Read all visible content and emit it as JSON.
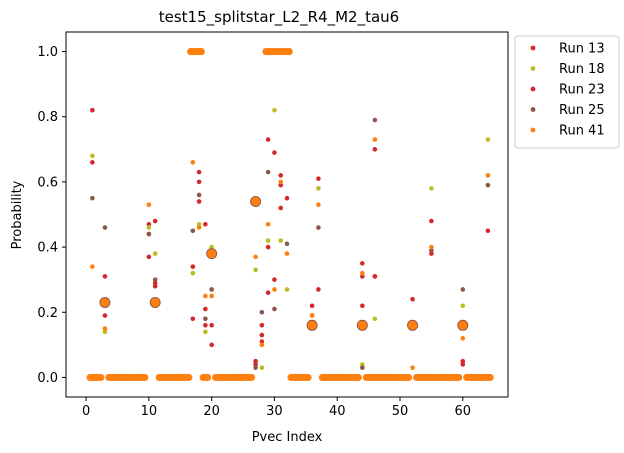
{
  "chart_data": {
    "type": "scatter",
    "title": "test15_splitstar_L2_R4_M2_tau6",
    "xlabel": "Pvec Index",
    "ylabel": "Probability",
    "xlim": [
      -3.2,
      67.2
    ],
    "ylim": [
      -0.06,
      1.06
    ],
    "x_ticks": [
      0,
      10,
      20,
      30,
      40,
      50,
      60
    ],
    "y_ticks": [
      0.0,
      0.2,
      0.4,
      0.6,
      0.8,
      1.0
    ],
    "x_tick_labels": [
      "0",
      "10",
      "20",
      "30",
      "40",
      "50",
      "60"
    ],
    "y_tick_labels": [
      "0.0",
      "0.2",
      "0.4",
      "0.6",
      "0.8",
      "1.0"
    ],
    "legend_position": "outside-top-right",
    "grid": false,
    "series": [
      {
        "name": "Run 13",
        "color": "#d62728",
        "points": [
          [
            1,
            0.82
          ],
          [
            1,
            0.66
          ],
          [
            3,
            0.31
          ],
          [
            3,
            0.19
          ],
          [
            10,
            0.37
          ],
          [
            10,
            0.47
          ],
          [
            11,
            0.48
          ],
          [
            11,
            0.29
          ],
          [
            17,
            0.18
          ],
          [
            17,
            0.34
          ],
          [
            18,
            0.63
          ],
          [
            18,
            0.54
          ],
          [
            19,
            0.47
          ],
          [
            19,
            0.16
          ],
          [
            20,
            0.1
          ],
          [
            20,
            0.16
          ],
          [
            27,
            0.05
          ],
          [
            28,
            0.16
          ],
          [
            28,
            0.13
          ],
          [
            29,
            0.73
          ],
          [
            29,
            0.4
          ],
          [
            30,
            0.69
          ],
          [
            30,
            0.3
          ],
          [
            31,
            0.62
          ],
          [
            31,
            0.52
          ],
          [
            32,
            0.55
          ],
          [
            36,
            0.22
          ],
          [
            36,
            0.19
          ],
          [
            37,
            0.61
          ],
          [
            37,
            0.27
          ],
          [
            44,
            0.35
          ],
          [
            44,
            0.22
          ],
          [
            46,
            0.7
          ],
          [
            46,
            0.31
          ],
          [
            52,
            0.24
          ],
          [
            55,
            0.48
          ],
          [
            55,
            0.38
          ],
          [
            60,
            0.05
          ],
          [
            64,
            0.45
          ]
        ]
      },
      {
        "name": "Run 18",
        "color": "#bcbd22",
        "points": [
          [
            1,
            0.68
          ],
          [
            3,
            0.14
          ],
          [
            10,
            0.46
          ],
          [
            11,
            0.38
          ],
          [
            17,
            0.32
          ],
          [
            18,
            0.47
          ],
          [
            19,
            0.14
          ],
          [
            20,
            0.4
          ],
          [
            27,
            0.33
          ],
          [
            28,
            0.03
          ],
          [
            29,
            0.42
          ],
          [
            30,
            0.82
          ],
          [
            31,
            0.42
          ],
          [
            32,
            0.27
          ],
          [
            37,
            0.58
          ],
          [
            44,
            0.04
          ],
          [
            46,
            0.18
          ],
          [
            55,
            0.58
          ],
          [
            60,
            0.22
          ],
          [
            64,
            0.73
          ]
        ]
      },
      {
        "name": "Run 23",
        "color": "#d62728",
        "points": [
          [
            10,
            0.44
          ],
          [
            11,
            0.28
          ],
          [
            18,
            0.6
          ],
          [
            19,
            0.21
          ],
          [
            27,
            0.04
          ],
          [
            28,
            0.11
          ],
          [
            29,
            0.26
          ],
          [
            31,
            0.59
          ],
          [
            36,
            0.16
          ],
          [
            44,
            0.31
          ],
          [
            46,
            0.31
          ],
          [
            60,
            0.04
          ]
        ]
      },
      {
        "name": "Run 25",
        "color": "#8c564b",
        "points": [
          [
            1,
            0.55
          ],
          [
            3,
            0.46
          ],
          [
            10,
            0.44
          ],
          [
            11,
            0.3
          ],
          [
            17,
            0.45
          ],
          [
            18,
            0.56
          ],
          [
            19,
            0.18
          ],
          [
            20,
            0.27
          ],
          [
            27,
            0.03
          ],
          [
            28,
            0.2
          ],
          [
            29,
            0.63
          ],
          [
            30,
            0.21
          ],
          [
            32,
            0.41
          ],
          [
            37,
            0.46
          ],
          [
            44,
            0.03
          ],
          [
            46,
            0.79
          ],
          [
            55,
            0.39
          ],
          [
            60,
            0.27
          ],
          [
            64,
            0.59
          ]
        ]
      },
      {
        "name": "Run 41",
        "color": "#ff7f0e",
        "points": [
          [
            1,
            0.34
          ],
          [
            3,
            0.15
          ],
          [
            10,
            0.53
          ],
          [
            11,
            0.22
          ],
          [
            17,
            0.66
          ],
          [
            18,
            0.46
          ],
          [
            19,
            0.25
          ],
          [
            20,
            0.25
          ],
          [
            27,
            0.37
          ],
          [
            28,
            0.1
          ],
          [
            29,
            0.47
          ],
          [
            30,
            0.27
          ],
          [
            31,
            0.6
          ],
          [
            32,
            0.38
          ],
          [
            36,
            0.19
          ],
          [
            37,
            0.53
          ],
          [
            44,
            0.32
          ],
          [
            46,
            0.73
          ],
          [
            52,
            0.03
          ],
          [
            55,
            0.4
          ],
          [
            60,
            0.12
          ],
          [
            64,
            0.62
          ]
        ]
      }
    ],
    "clusters": [
      {
        "color": "#ff7f0e",
        "y": 0.0,
        "x_ranges": [
          [
            1,
            2
          ],
          [
            4,
            9
          ],
          [
            12,
            16
          ],
          [
            19,
            19
          ],
          [
            21,
            26
          ],
          [
            33,
            35
          ],
          [
            38,
            43
          ],
          [
            45,
            51
          ],
          [
            53,
            59
          ],
          [
            61,
            64
          ]
        ]
      },
      {
        "color": "#ff7f0e",
        "y": 1.0,
        "x_ranges": [
          [
            17,
            18
          ],
          [
            29,
            32
          ]
        ]
      },
      {
        "color": "#ff7f0e",
        "y": 0.23,
        "x_ranges": [
          [
            3,
            3
          ],
          [
            11,
            11
          ]
        ]
      },
      {
        "color": "#ff7f0e",
        "y": 0.38,
        "x_ranges": [
          [
            20,
            20
          ]
        ]
      },
      {
        "color": "#ff7f0e",
        "y": 0.54,
        "x_ranges": [
          [
            27,
            27
          ]
        ]
      },
      {
        "color": "#ff7f0e",
        "y": 0.16,
        "x_ranges": [
          [
            36,
            36
          ],
          [
            44,
            44
          ],
          [
            52,
            52
          ],
          [
            60,
            60
          ]
        ]
      }
    ]
  }
}
